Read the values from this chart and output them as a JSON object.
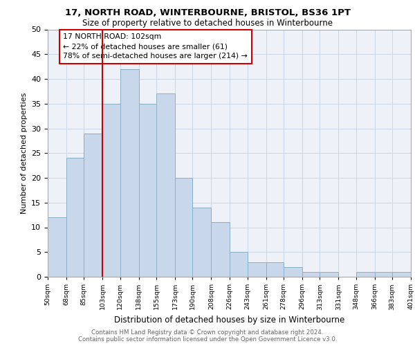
{
  "title1": "17, NORTH ROAD, WINTERBOURNE, BRISTOL, BS36 1PT",
  "title2": "Size of property relative to detached houses in Winterbourne",
  "xlabel": "Distribution of detached houses by size in Winterbourne",
  "ylabel": "Number of detached properties",
  "footnote1": "Contains HM Land Registry data © Crown copyright and database right 2024.",
  "footnote2": "Contains public sector information licensed under the Open Government Licence v3.0.",
  "annotation_line1": "17 NORTH ROAD: 102sqm",
  "annotation_line2": "← 22% of detached houses are smaller (61)",
  "annotation_line3": "78% of semi-detached houses are larger (214) →",
  "bar_left_edges": [
    50,
    68,
    85,
    103,
    120,
    138,
    155,
    173,
    190,
    208,
    226,
    243,
    261,
    278,
    296,
    313,
    348,
    366,
    383
  ],
  "bar_widths": [
    18,
    17,
    18,
    17,
    18,
    17,
    18,
    17,
    18,
    18,
    17,
    18,
    17,
    18,
    17,
    18,
    18,
    17,
    18
  ],
  "bar_heights": [
    12,
    24,
    29,
    35,
    42,
    35,
    37,
    20,
    14,
    11,
    5,
    3,
    3,
    2,
    1,
    1,
    1,
    1,
    1
  ],
  "bar_color": "#c8d8ea",
  "bar_edge_color": "#8aafc8",
  "vertical_line_x": 103,
  "vertical_line_color": "#cc0000",
  "annotation_box_color": "#cc0000",
  "grid_color": "#ccd8e8",
  "background_color": "#eef2f8",
  "ylim": [
    0,
    50
  ],
  "yticks": [
    0,
    5,
    10,
    15,
    20,
    25,
    30,
    35,
    40,
    45,
    50
  ],
  "xlim": [
    50,
    401
  ],
  "xtick_labels": [
    "50sqm",
    "68sqm",
    "85sqm",
    "103sqm",
    "120sqm",
    "138sqm",
    "155sqm",
    "173sqm",
    "190sqm",
    "208sqm",
    "226sqm",
    "243sqm",
    "261sqm",
    "278sqm",
    "296sqm",
    "313sqm",
    "331sqm",
    "348sqm",
    "366sqm",
    "383sqm",
    "401sqm"
  ],
  "xtick_positions": [
    50,
    68,
    85,
    103,
    120,
    138,
    155,
    173,
    190,
    208,
    226,
    243,
    261,
    278,
    296,
    313,
    331,
    348,
    366,
    383,
    401
  ]
}
